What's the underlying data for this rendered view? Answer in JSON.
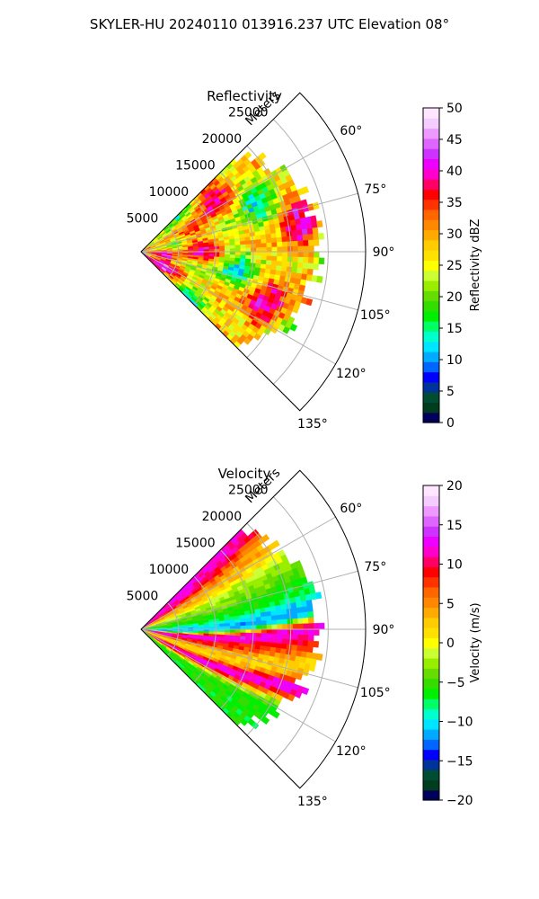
{
  "figure": {
    "suptitle": "SKYLER-HU  20240110  013916.237 UTC Elevation 08°"
  },
  "chart_data": [
    {
      "type": "heatmap",
      "subtype": "polar-sector",
      "title": "Reflectivity",
      "radial_label": "Meters",
      "radial_ticks": [
        5000,
        10000,
        15000,
        20000,
        25000
      ],
      "radial_tick_labels": [
        "5000",
        "10000",
        "15000",
        "20000",
        "25000"
      ],
      "radial_max": 30000,
      "azimuth_range_deg": [
        45,
        135
      ],
      "azimuth_ticks": [
        60,
        75,
        90,
        105,
        120,
        135
      ],
      "azimuth_tick_labels": [
        "60°",
        "75°",
        "90°",
        "105°",
        "120°",
        "135°"
      ],
      "data_extent_m": 28000,
      "grid": true,
      "field": "reflectivity",
      "colorbar": {
        "label": "Reflectivity dBZ",
        "vmin": 0,
        "vmax": 50,
        "ticks": [
          0,
          5,
          10,
          15,
          20,
          25,
          30,
          35,
          40,
          45,
          50
        ],
        "tick_labels": [
          "0",
          "5",
          "10",
          "15",
          "20",
          "25",
          "30",
          "35",
          "40",
          "45",
          "50"
        ],
        "colors": [
          "#00005a",
          "#003d1f",
          "#004d33",
          "#003399",
          "#0000ff",
          "#0066ff",
          "#00aaff",
          "#00e5ff",
          "#00ffcc",
          "#00ff66",
          "#00ee00",
          "#33dd00",
          "#66dd00",
          "#99ee00",
          "#ccff33",
          "#ffff00",
          "#ffe100",
          "#ffcc00",
          "#ffaa00",
          "#ff8800",
          "#ff6600",
          "#ff3300",
          "#ff0000",
          "#ff0066",
          "#ff00cc",
          "#ee00ff",
          "#cc33ff",
          "#dd66ff",
          "#ee99ff",
          "#f5ccff",
          "#ffe5ff"
        ]
      }
    },
    {
      "type": "heatmap",
      "subtype": "polar-sector",
      "title": "Velocity",
      "radial_label": "Meters",
      "radial_ticks": [
        5000,
        10000,
        15000,
        20000,
        25000
      ],
      "radial_tick_labels": [
        "5000",
        "10000",
        "15000",
        "20000",
        "25000"
      ],
      "radial_max": 30000,
      "azimuth_range_deg": [
        45,
        135
      ],
      "azimuth_ticks": [
        60,
        75,
        90,
        105,
        120,
        135
      ],
      "azimuth_tick_labels": [
        "60°",
        "75°",
        "90°",
        "105°",
        "120°",
        "135°"
      ],
      "data_extent_m": 28000,
      "grid": true,
      "field": "velocity",
      "colorbar": {
        "label": "Velocity (m/s)",
        "vmin": -20,
        "vmax": 20,
        "ticks": [
          -20,
          -15,
          -10,
          -5,
          0,
          5,
          10,
          15,
          20
        ],
        "tick_labels": [
          "−20",
          "−15",
          "−10",
          "−5",
          "0",
          "5",
          "10",
          "15",
          "20"
        ],
        "colors": [
          "#00005a",
          "#003d1f",
          "#004d33",
          "#003399",
          "#0000ff",
          "#0066ff",
          "#00aaff",
          "#00e5ff",
          "#00ffcc",
          "#00ff66",
          "#00ee00",
          "#33dd00",
          "#66dd00",
          "#99ee00",
          "#ccff33",
          "#ffff00",
          "#ffe100",
          "#ffcc00",
          "#ffaa00",
          "#ff8800",
          "#ff6600",
          "#ff3300",
          "#ff0000",
          "#ff0066",
          "#ff00cc",
          "#ee00ff",
          "#cc33ff",
          "#dd66ff",
          "#ee99ff",
          "#f5ccff",
          "#ffe5ff"
        ]
      }
    }
  ]
}
